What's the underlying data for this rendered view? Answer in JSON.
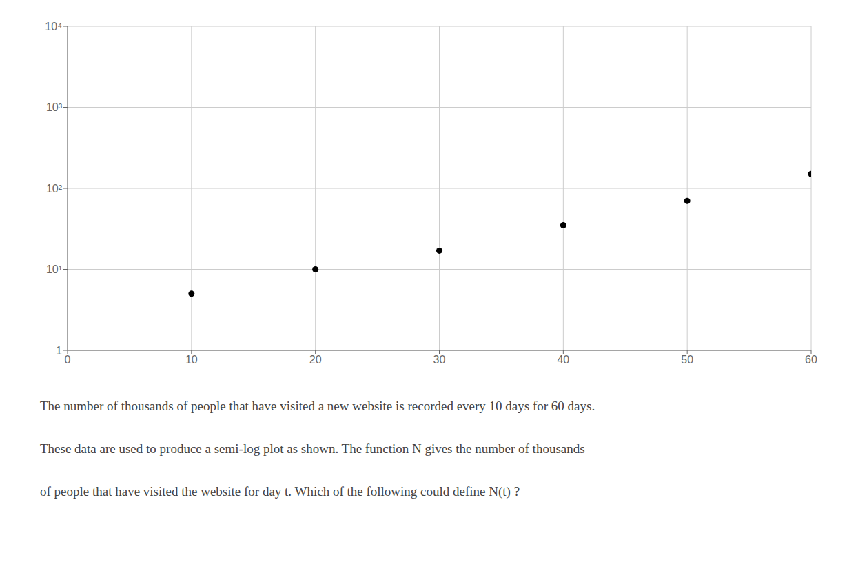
{
  "chart_data": {
    "type": "scatter",
    "x": [
      10,
      20,
      30,
      40,
      50,
      60
    ],
    "values": [
      5,
      10,
      17,
      35,
      70,
      150
    ],
    "color": "#000000",
    "marker": "circle",
    "xlim": [
      0,
      60
    ],
    "ylim": [
      1,
      10000
    ],
    "xticks": [
      0,
      10,
      20,
      30,
      40,
      50,
      60
    ],
    "yticks": [
      1,
      {
        "value": 10,
        "label": "10¹"
      },
      {
        "value": 100,
        "label": "10²"
      },
      {
        "value": 1000,
        "label": "10³"
      },
      {
        "value": 10000,
        "label": "10⁴"
      }
    ],
    "log": "y",
    "grid": true,
    "annotations": [
      "The number of thousands of people that have visited a new website is recorded every 10 days for 60 days.",
      "These data are used to produce a semi-log plot as shown. The function N gives the number of thousands",
      "of people that have visited the website for day t. Which of the following could define N(t) ?"
    ]
  }
}
